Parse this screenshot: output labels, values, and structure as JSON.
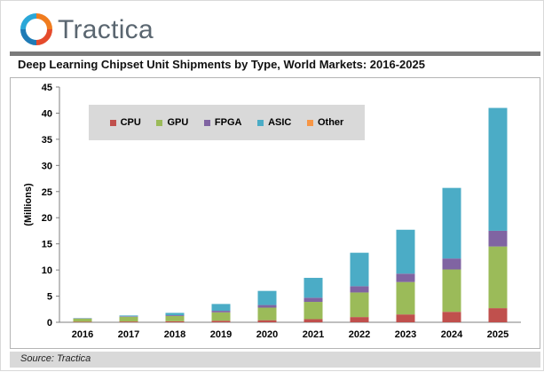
{
  "brand": {
    "name": "Tractica",
    "colors": {
      "blue": "#1f7bb6",
      "orange": "#f07c1e",
      "gray": "#5a6670"
    }
  },
  "source": "Source: Tractica",
  "chart_data": {
    "type": "bar",
    "stacked": true,
    "title": "Deep Learning Chipset Unit Shipments by Type, World Markets: 2016-2025",
    "xlabel": "",
    "ylabel": "(Millions)",
    "ylim": [
      0,
      45
    ],
    "yticks": [
      0,
      5,
      10,
      15,
      20,
      25,
      30,
      35,
      40,
      45
    ],
    "categories": [
      "2016",
      "2017",
      "2018",
      "2019",
      "2020",
      "2021",
      "2022",
      "2023",
      "2024",
      "2025"
    ],
    "series": [
      {
        "name": "CPU",
        "color": "#c0504d",
        "values": [
          0.1,
          0.15,
          0.2,
          0.3,
          0.4,
          0.6,
          1.0,
          1.5,
          2.0,
          2.7
        ]
      },
      {
        "name": "GPU",
        "color": "#9bbb59",
        "values": [
          0.6,
          0.9,
          1.0,
          1.6,
          2.4,
          3.3,
          4.7,
          6.2,
          8.1,
          11.8
        ]
      },
      {
        "name": "FPGA",
        "color": "#8064a2",
        "values": [
          0.05,
          0.1,
          0.15,
          0.3,
          0.5,
          0.8,
          1.2,
          1.6,
          2.1,
          3.0
        ]
      },
      {
        "name": "ASIC",
        "color": "#4bacc6",
        "values": [
          0.05,
          0.15,
          0.45,
          1.3,
          2.7,
          3.8,
          6.4,
          8.4,
          13.5,
          23.5
        ]
      },
      {
        "name": "Other",
        "color": "#f79646",
        "values": [
          0,
          0,
          0,
          0,
          0,
          0,
          0,
          0,
          0,
          0
        ]
      }
    ],
    "legend": "top-left inside plot",
    "grid": false
  }
}
